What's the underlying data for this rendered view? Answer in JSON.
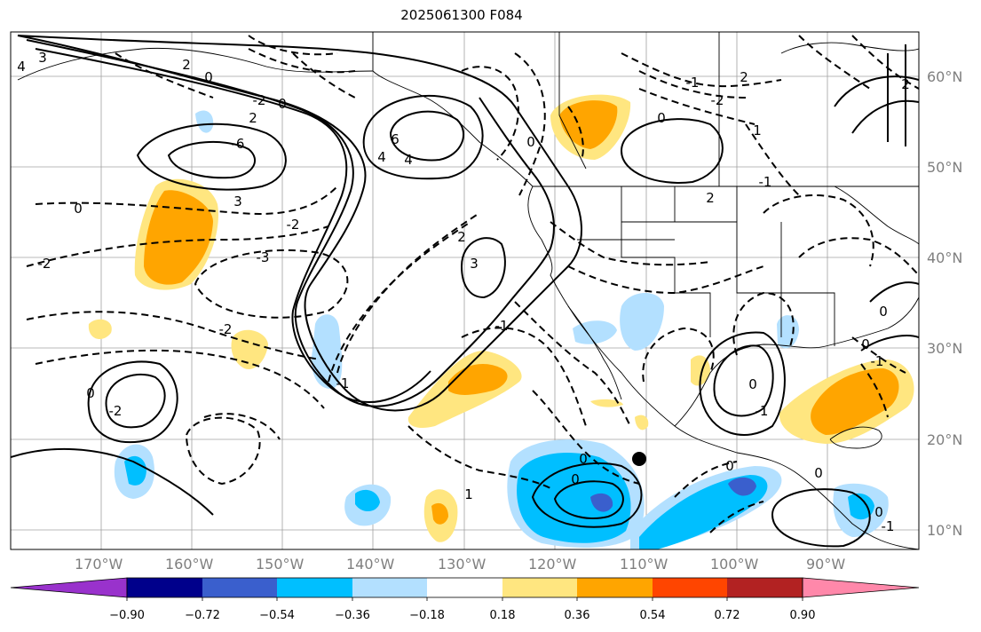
{
  "title": "2025061300 F084",
  "map": {
    "lon_ticks": [
      "170°W",
      "160°W",
      "150°W",
      "140°W",
      "130°W",
      "120°W",
      "110°W",
      "100°W",
      "90°W"
    ],
    "lat_ticks": [
      "60°N",
      "50°N",
      "40°N",
      "30°N",
      "20°N",
      "10°N"
    ],
    "contour_labels": [
      "4",
      "3",
      "2",
      "-2",
      "0",
      "4",
      "6",
      "-6",
      "3",
      "4",
      "-2",
      "0",
      "2",
      "0",
      "-3",
      "-2",
      "2",
      "3",
      "-2",
      "-1",
      "0",
      "-2",
      "1",
      "0",
      "-1",
      "2",
      "-1",
      "2",
      "0",
      "0",
      "-1",
      "-2",
      "0",
      "-1",
      "1",
      "0",
      "0",
      "-1",
      "0",
      "0",
      "0",
      "-1",
      "0",
      "2"
    ],
    "colors": {
      "positive_light": "#ffe680",
      "positive_mid": "#ffa500",
      "negative_light": "#b3e0ff",
      "negative_mid": "#00bfff",
      "negative_dark": "#3a5fcd",
      "marker": "#000000"
    }
  },
  "colorbar": {
    "tick_labels": [
      "−0.90",
      "−0.72",
      "−0.54",
      "−0.36",
      "−0.18",
      "0.18",
      "0.36",
      "0.54",
      "0.72",
      "0.90"
    ],
    "colors": [
      "#9932cc",
      "#00008b",
      "#3a5fcd",
      "#00bfff",
      "#b3e0ff",
      "#ffffff",
      "#ffe680",
      "#ffa500",
      "#ff4500",
      "#b22222",
      "#ff88aa"
    ]
  }
}
